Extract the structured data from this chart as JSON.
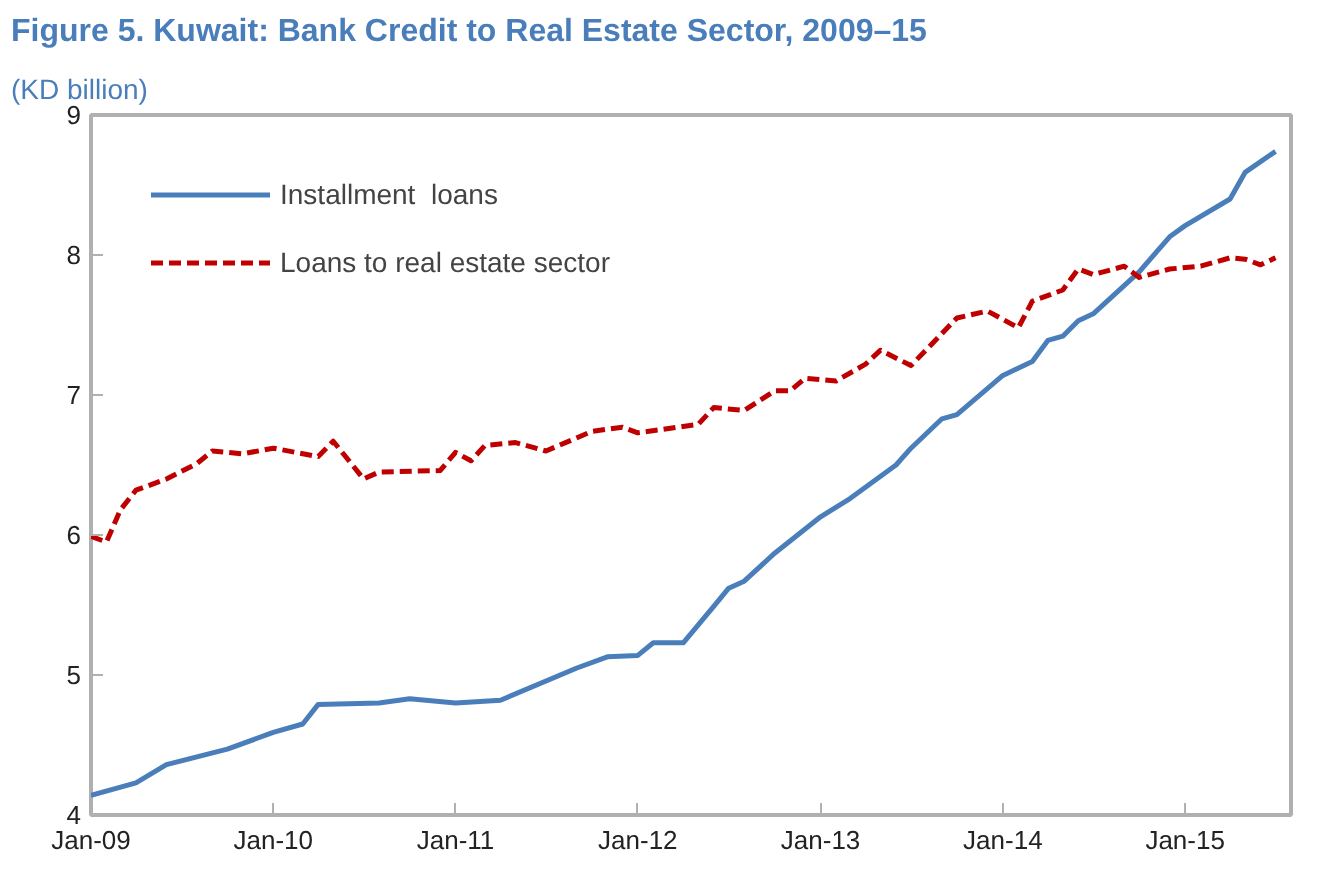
{
  "chart_data": {
    "type": "line",
    "title": "Figure 5. Kuwait: Bank Credit to Real Estate Sector, 2009–15",
    "subtitle": "(KD billion)",
    "xlim": [
      "2009-01",
      "2015-08"
    ],
    "xticks": [
      {
        "value": "2009-01",
        "label": "Jan-09"
      },
      {
        "value": "2010-01",
        "label": "Jan-10"
      },
      {
        "value": "2011-01",
        "label": "Jan-11"
      },
      {
        "value": "2012-01",
        "label": "Jan-12"
      },
      {
        "value": "2013-01",
        "label": "Jan-13"
      },
      {
        "value": "2014-01",
        "label": "Jan-14"
      },
      {
        "value": "2015-01",
        "label": "Jan-15"
      }
    ],
    "ylim": [
      4,
      9
    ],
    "yticks": [
      4,
      5,
      6,
      7,
      8,
      9
    ],
    "grid": false,
    "legend": "top left",
    "series": [
      {
        "name": "Installment  loans",
        "color": "#4a7ebb",
        "line_style": "solid",
        "x": [
          "2009-01",
          "2009-04",
          "2009-06",
          "2009-10",
          "2010-01",
          "2010-03",
          "2010-04",
          "2010-08",
          "2010-10",
          "2011-01",
          "2011-04",
          "2011-09",
          "2011-11",
          "2012-01",
          "2012-02",
          "2012-04",
          "2012-06",
          "2012-07",
          "2012-08",
          "2012-10",
          "2013-01",
          "2013-03",
          "2013-06",
          "2013-07",
          "2013-09",
          "2013-10",
          "2014-01",
          "2014-03",
          "2014-04",
          "2014-05",
          "2014-06",
          "2014-07",
          "2014-10",
          "2014-12",
          "2015-01",
          "2015-04",
          "2015-05",
          "2015-07"
        ],
        "values": [
          4.14,
          4.23,
          4.36,
          4.47,
          4.59,
          4.65,
          4.79,
          4.8,
          4.83,
          4.8,
          4.82,
          5.05,
          5.13,
          5.14,
          5.23,
          5.23,
          5.49,
          5.62,
          5.67,
          5.87,
          6.13,
          6.26,
          6.5,
          6.62,
          6.83,
          6.86,
          7.14,
          7.24,
          7.39,
          7.42,
          7.53,
          7.58,
          7.88,
          8.13,
          8.21,
          8.4,
          8.59,
          8.74
        ]
      },
      {
        "name": "Loans to real estate sector",
        "color": "#c00000",
        "line_style": "dashed",
        "x": [
          "2009-01",
          "2009-02",
          "2009-03",
          "2009-04",
          "2009-06",
          "2009-08",
          "2009-09",
          "2009-11",
          "2010-01",
          "2010-04",
          "2010-05",
          "2010-07",
          "2010-08",
          "2010-12",
          "2011-01",
          "2011-02",
          "2011-03",
          "2011-05",
          "2011-07",
          "2011-10",
          "2011-12",
          "2012-01",
          "2012-05",
          "2012-06",
          "2012-08",
          "2012-10",
          "2012-11",
          "2012-12",
          "2013-02",
          "2013-04",
          "2013-05",
          "2013-07",
          "2013-10",
          "2013-12",
          "2014-02",
          "2014-03",
          "2014-05",
          "2014-06",
          "2014-07",
          "2014-09",
          "2014-10",
          "2014-12",
          "2015-02",
          "2015-04",
          "2015-05",
          "2015-06",
          "2015-07"
        ],
        "values": [
          5.99,
          5.95,
          6.18,
          6.32,
          6.4,
          6.51,
          6.6,
          6.58,
          6.62,
          6.56,
          6.67,
          6.4,
          6.45,
          6.46,
          6.59,
          6.53,
          6.64,
          6.66,
          6.6,
          6.74,
          6.77,
          6.73,
          6.79,
          6.91,
          6.89,
          7.03,
          7.03,
          7.12,
          7.1,
          7.22,
          7.32,
          7.21,
          7.55,
          7.6,
          7.48,
          7.67,
          7.75,
          7.9,
          7.86,
          7.92,
          7.84,
          7.9,
          7.92,
          7.98,
          7.97,
          7.93,
          7.98
        ]
      }
    ]
  }
}
